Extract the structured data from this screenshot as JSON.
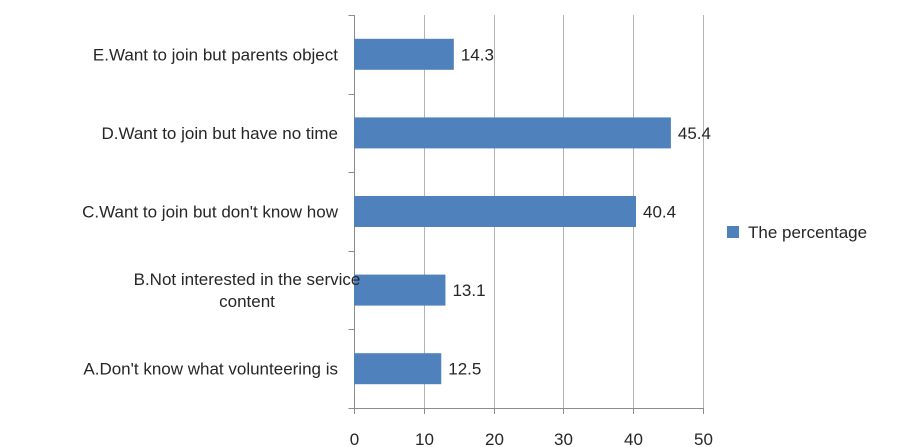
{
  "chart_data": {
    "type": "bar",
    "orientation": "horizontal",
    "categories": [
      [
        "E.Want to join but parents object"
      ],
      [
        "D.Want to join but have no time"
      ],
      [
        "C.Want to join but don't know how"
      ],
      [
        "B.Not interested in the service",
        "content"
      ],
      [
        "A.Don't know what volunteering is"
      ]
    ],
    "series": [
      {
        "name": "The percentage",
        "values": [
          14.3,
          45.4,
          40.4,
          13.1,
          12.5
        ],
        "color": "#4f81bd"
      }
    ],
    "data_labels": [
      "14.3",
      "45.4",
      "40.4",
      "13.1",
      "12.5"
    ],
    "xlim": [
      0,
      50
    ],
    "xticks": [
      "0",
      "10",
      "20",
      "30",
      "40",
      "50"
    ],
    "grid": "vertical",
    "legend": "right"
  }
}
